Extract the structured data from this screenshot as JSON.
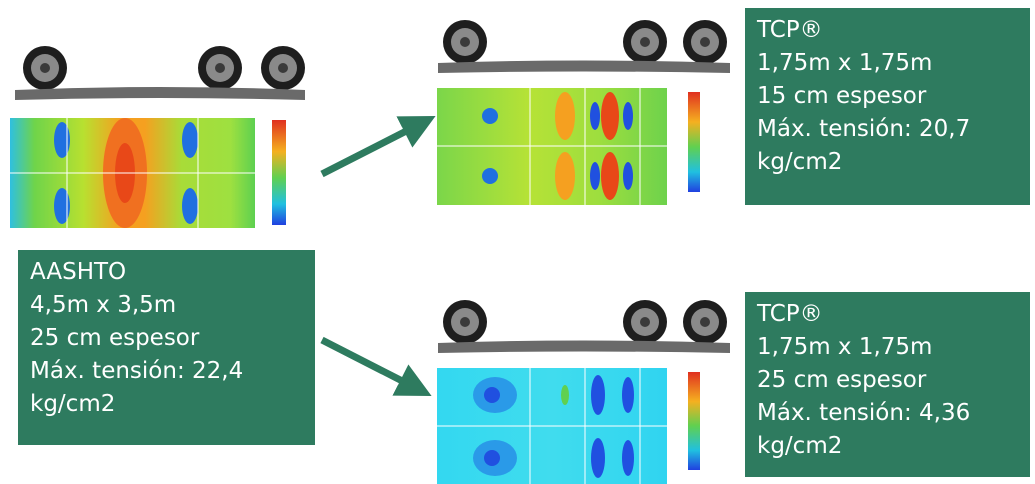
{
  "boxes": [
    {
      "lines": [
        "AASHTO",
        "4,5m x 3,5m",
        "25 cm espesor",
        "Máx. tensión: 22,4",
        "kg/cm2"
      ]
    },
    {
      "lines": [
        "TCP®",
        "1,75m x 1,75m",
        "15 cm espesor",
        "Máx. tensión: 20,7",
        "kg/cm2"
      ]
    },
    {
      "lines": [
        "TCP®",
        "1,75m x 1,75m",
        "25 cm espesor",
        "Máx. tensión: 4,36",
        "kg/cm2"
      ]
    }
  ]
}
